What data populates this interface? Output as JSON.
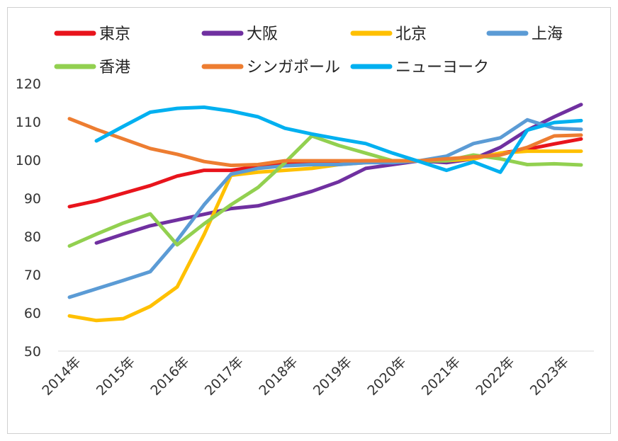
{
  "chart_data": {
    "type": "line",
    "title": "",
    "xlabel": "",
    "ylabel": "",
    "ylim": [
      50,
      120
    ],
    "yticks": [
      50,
      60,
      70,
      80,
      90,
      100,
      110,
      120
    ],
    "xticks": [
      "2014年",
      "2015年",
      "2016年",
      "2017年",
      "2018年",
      "2019年",
      "2020年",
      "2021年",
      "2022年",
      "2023年"
    ],
    "x": [
      "2014 Q1",
      "2014 Q3",
      "2015 Q1",
      "2015 Q3",
      "2016 Q1",
      "2016 Q3",
      "2017 Q1",
      "2017 Q3",
      "2018 Q1",
      "2018 Q3",
      "2019 Q1",
      "2019 Q3",
      "2020 Q1",
      "2020 Q3",
      "2021 Q1",
      "2021 Q3",
      "2022 Q1",
      "2022 Q3",
      "2023 Q1",
      "2023 Q3"
    ],
    "legend_position": "top",
    "grid": false,
    "series": [
      {
        "name": "東京",
        "color": "#e8141c",
        "values": [
          87.8,
          89.3,
          91.3,
          93.3,
          95.8,
          97.3,
          97.3,
          98.3,
          99.3,
          99.5,
          99.5,
          99.8,
          99.8,
          99.8,
          99.6,
          100.3,
          101.8,
          102.8,
          104.2,
          105.5
        ]
      },
      {
        "name": "大阪",
        "color": "#7030a0",
        "values": [
          null,
          78.3,
          80.6,
          82.8,
          84.3,
          85.8,
          87.3,
          88.0,
          89.8,
          91.8,
          94.3,
          97.8,
          98.8,
          99.8,
          99.3,
          100.3,
          103.3,
          107.8,
          111.3,
          114.5
        ]
      },
      {
        "name": "北京",
        "color": "#ffc000",
        "values": [
          59.2,
          58.0,
          58.5,
          61.7,
          66.8,
          80.5,
          96.0,
          96.8,
          97.3,
          97.8,
          98.8,
          99.3,
          99.6,
          99.8,
          99.8,
          100.3,
          101.8,
          102.3,
          102.3,
          102.3
        ]
      },
      {
        "name": "上海",
        "color": "#5b9bd5",
        "values": [
          64.1,
          66.3,
          68.5,
          70.8,
          79.0,
          88.3,
          96.3,
          97.8,
          98.5,
          98.8,
          98.8,
          99.3,
          99.3,
          99.8,
          101.0,
          104.3,
          105.8,
          110.5,
          108.3,
          108.0
        ]
      },
      {
        "name": "香港",
        "color": "#92d050",
        "values": [
          77.5,
          80.6,
          83.5,
          85.9,
          77.8,
          83.3,
          88.3,
          92.8,
          99.3,
          106.3,
          103.8,
          101.8,
          99.8,
          99.8,
          99.8,
          101.3,
          100.3,
          98.8,
          99.0,
          98.7
        ]
      },
      {
        "name": "シンガポール",
        "color": "#ed7d31",
        "values": [
          110.8,
          108.0,
          105.5,
          103.0,
          101.5,
          99.6,
          98.6,
          98.8,
          99.8,
          99.8,
          99.8,
          99.8,
          99.8,
          99.8,
          100.3,
          100.8,
          101.3,
          103.3,
          106.3,
          106.5
        ]
      },
      {
        "name": "ニューヨーク",
        "color": "#00b0f0",
        "values": [
          null,
          105.0,
          108.8,
          112.5,
          113.5,
          113.8,
          112.8,
          111.3,
          108.3,
          106.8,
          105.5,
          104.3,
          101.8,
          99.6,
          97.3,
          99.5,
          96.8,
          107.8,
          109.8,
          110.3
        ]
      }
    ]
  }
}
